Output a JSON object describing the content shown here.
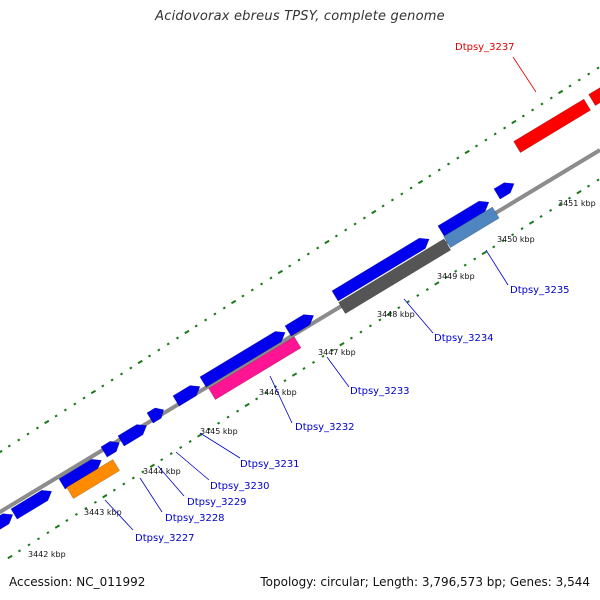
{
  "title": "Acidovorax ebreus TPSY, complete genome",
  "footer": {
    "accession": "Accession: NC_011992",
    "summary": "Topology: circular; Length: 3,796,573 bp; Genes: 3,544"
  },
  "scale": {
    "unit": "kbp",
    "labels": [
      "3442 kbp",
      "3443 kbp",
      "3444 kbp",
      "3445 kbp",
      "3446 kbp",
      "3447 kbp",
      "3448 kbp",
      "3449 kbp",
      "3450 kbp",
      "3451 kbp"
    ]
  },
  "colors": {
    "forward_gene": "#0000ee",
    "backbone": "#8c8c8c",
    "tick": "#1a7a1a",
    "label_blue": "#0000cc",
    "label_red": "#dd0000",
    "highlight_red": "#ff0000",
    "highlight_magenta": "#ff1493",
    "highlight_orange": "#ff8c00",
    "highlight_dark_gray": "#555555",
    "highlight_steel_blue": "#4f86c0"
  },
  "highlighted_genes": [
    {
      "name": "Dtpsy_3227",
      "color": "#ff8c00",
      "label_color": "#0000cc"
    },
    {
      "name": "Dtpsy_3228",
      "color": "#0000ee",
      "label_color": "#0000cc"
    },
    {
      "name": "Dtpsy_3229",
      "color": "#0000ee",
      "label_color": "#0000cc"
    },
    {
      "name": "Dtpsy_3230",
      "color": "#0000ee",
      "label_color": "#0000cc"
    },
    {
      "name": "Dtpsy_3231",
      "color": "#0000ee",
      "label_color": "#0000cc"
    },
    {
      "name": "Dtpsy_3232",
      "color": "#ff1493",
      "label_color": "#0000cc"
    },
    {
      "name": "Dtpsy_3233",
      "color": "#0000ee",
      "label_color": "#0000cc"
    },
    {
      "name": "Dtpsy_3234",
      "color": "#555555",
      "label_color": "#0000cc"
    },
    {
      "name": "Dtpsy_3235",
      "color": "#4f86c0",
      "label_color": "#0000cc"
    },
    {
      "name": "Dtpsy_3237",
      "color": "#ff0000",
      "label_color": "#dd0000"
    }
  ]
}
